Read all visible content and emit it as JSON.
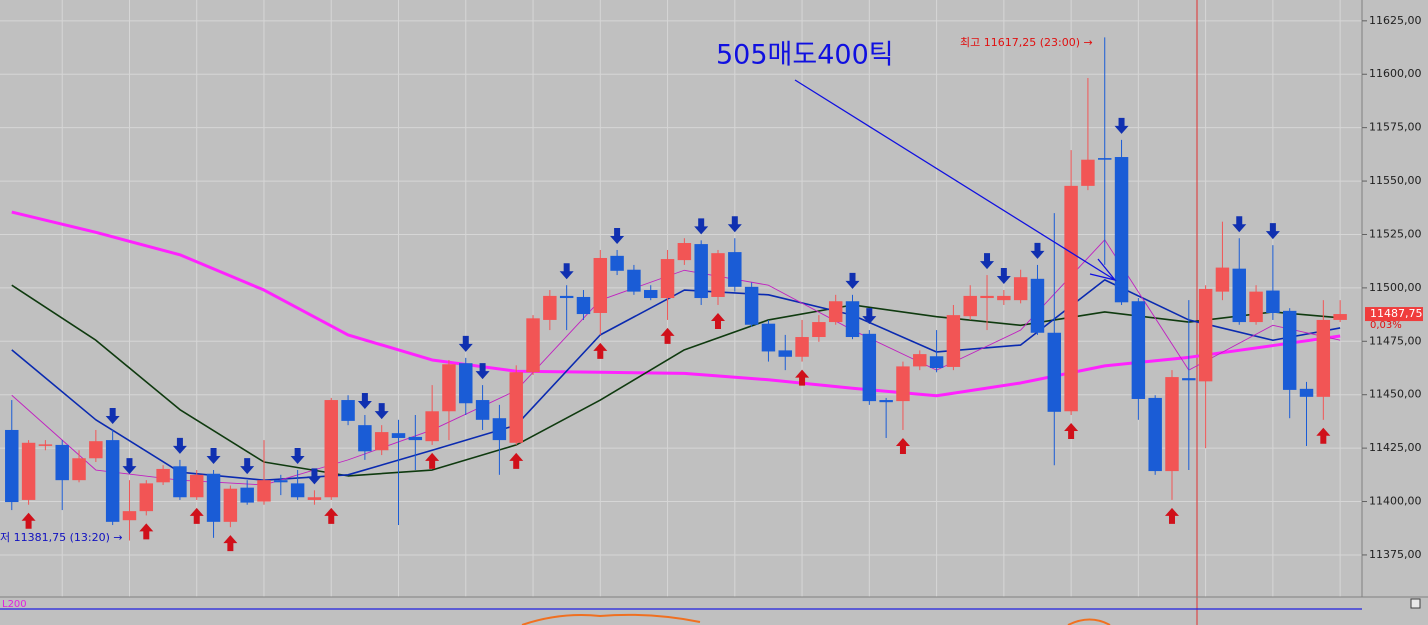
{
  "chart_data": {
    "type": "candlestick",
    "ylim": [
      11356.25,
      11634.75
    ],
    "xlim": [
      -0.7,
      80.3
    ],
    "yticks": [
      {
        "value": 11375,
        "label": "11375,00"
      },
      {
        "value": 11400,
        "label": "11400,00"
      },
      {
        "value": 11425,
        "label": "11425,00"
      },
      {
        "value": 11450,
        "label": "11450,00"
      },
      {
        "value": 11475,
        "label": "11475,00"
      },
      {
        "value": 11500,
        "label": "11500,00"
      },
      {
        "value": 11525,
        "label": "11525,00"
      },
      {
        "value": 11550,
        "label": "11550,00"
      },
      {
        "value": 11575,
        "label": "11575,00"
      },
      {
        "value": 11600,
        "label": "11600,00"
      },
      {
        "value": 11625,
        "label": "11625,00"
      }
    ],
    "grid": true,
    "up_color": "#f25555",
    "down_color": "#1a5cd6",
    "open": [
      11433.5,
      11400.75,
      11426.5,
      11426.5,
      11410,
      11420.25,
      11428.75,
      11391.25,
      11395.5,
      11409,
      11416.5,
      11402,
      11413,
      11390.5,
      11406.5,
      11400,
      11410,
      11408.5,
      11400.75,
      11402,
      11447.5,
      11435.75,
      11424,
      11432,
      11430.25,
      11428.25,
      11442.25,
      11464.75,
      11447.5,
      11439,
      11427.5,
      11460.5,
      11485,
      11496.25,
      11495.75,
      11488.25,
      11515,
      11508.5,
      11499,
      11495.25,
      11513,
      11520.5,
      11495.75,
      11516.75,
      11500.5,
      11483.25,
      11470.75,
      11467.75,
      11477,
      11484,
      11493.75,
      11478.5,
      11447.5,
      11447,
      11463.25,
      11468,
      11463,
      11486.75,
      11495.25,
      11494.25,
      11494.25,
      11504.25,
      11479,
      11442.25,
      11547.75,
      11560.75,
      11561.25,
      11493.75,
      11448.5,
      11414.25,
      11457.75,
      11456.25,
      11498.25,
      11509,
      11484,
      11498.75,
      11489.25,
      11452.75,
      11449,
      11485
    ],
    "high": [
      11447.5,
      11428.75,
      11428.75,
      11428.75,
      11424,
      11433.5,
      11433.5,
      11410,
      11410,
      11417,
      11419.5,
      11414.75,
      11414.75,
      11407.5,
      11410,
      11428.75,
      11412.5,
      11414.75,
      11405.25,
      11448.5,
      11449.75,
      11440.5,
      11435.75,
      11438.25,
      11440.5,
      11454.5,
      11466.25,
      11467.25,
      11454.5,
      11445.25,
      11463.75,
      11487.25,
      11499,
      11501.25,
      11499,
      11517.75,
      11517.75,
      11510.75,
      11501.25,
      11517.75,
      11523.25,
      11522.25,
      11517.75,
      11523.25,
      11502.5,
      11485,
      11478,
      11485,
      11487.25,
      11496.75,
      11496.75,
      11480.25,
      11448.5,
      11465.5,
      11470.75,
      11480.25,
      11492,
      11501.25,
      11506,
      11499,
      11508.5,
      11510.75,
      11535,
      11564.5,
      11598.25,
      11617.25,
      11569.25,
      11495.25,
      11449.75,
      11461.5,
      11494.25,
      11501.25,
      11531,
      11523.25,
      11501.25,
      11520,
      11490.5,
      11456,
      11494.25,
      11494.25
    ],
    "low": [
      11396,
      11398.5,
      11424,
      11396,
      11409,
      11418.5,
      11389,
      11381.75,
      11393.5,
      11407.75,
      11400.75,
      11400.75,
      11383,
      11388,
      11398.5,
      11398.5,
      11403,
      11400.75,
      11398.5,
      11400.75,
      11435.75,
      11419.5,
      11421.75,
      11389,
      11414.75,
      11426.5,
      11428.75,
      11440.5,
      11433.5,
      11412.5,
      11426.5,
      11459.25,
      11480.25,
      11480.25,
      11485,
      11478,
      11506,
      11496.75,
      11494.25,
      11485,
      11510.75,
      11492,
      11492,
      11498.25,
      11481.75,
      11465.5,
      11461.5,
      11465.5,
      11474.75,
      11482.75,
      11476,
      11445.25,
      11429.75,
      11433.5,
      11461.5,
      11460.5,
      11461.5,
      11485,
      11480.25,
      11492,
      11492.75,
      11478,
      11417,
      11440.5,
      11545.75,
      11510.75,
      11492,
      11438.25,
      11412.5,
      11400.75,
      11414.75,
      11425,
      11494.25,
      11482.75,
      11482.75,
      11485,
      11439,
      11426,
      11438.25,
      11484
    ],
    "close": [
      11399.75,
      11427.5,
      11426.75,
      11410,
      11420.25,
      11428.25,
      11390.5,
      11395.5,
      11408.5,
      11415.25,
      11402,
      11412.5,
      11390.5,
      11406,
      11399.5,
      11410,
      11409,
      11402,
      11402,
      11447.5,
      11437.75,
      11423.5,
      11432.5,
      11429.75,
      11428.75,
      11442.25,
      11464.25,
      11446,
      11438.25,
      11428.75,
      11460.5,
      11485.75,
      11496.25,
      11495.25,
      11487.75,
      11514,
      11508,
      11498.25,
      11495.25,
      11513.5,
      11521,
      11495.25,
      11516.25,
      11500.5,
      11482.75,
      11470.25,
      11467.75,
      11477,
      11484,
      11493.75,
      11477,
      11447,
      11446.5,
      11463.25,
      11469,
      11462.5,
      11487.25,
      11496.25,
      11496.25,
      11496.25,
      11505,
      11479,
      11442,
      11547.75,
      11560,
      11560,
      11493.25,
      11448,
      11414.25,
      11458.25,
      11456.75,
      11499.5,
      11509.5,
      11484,
      11498.25,
      11488.25,
      11452.25,
      11449,
      11485,
      11487.75
    ],
    "lines": [
      {
        "color": "#ff22ff",
        "width": 3,
        "x": [
          0,
          5,
          10,
          15,
          20,
          25,
          30,
          35,
          40,
          45,
          50,
          55,
          60,
          65,
          70,
          75,
          79
        ],
        "values": [
          11535.5,
          11526,
          11515.5,
          11499,
          11478,
          11466.25,
          11461,
          11460.5,
          11460,
          11457,
          11453,
          11449.5,
          11455.5,
          11463.5,
          11467.5,
          11473,
          11477.5
        ]
      },
      {
        "color": "#0f3a0f",
        "width": 1.6,
        "x": [
          0,
          5,
          10,
          15,
          20,
          25,
          30,
          35,
          40,
          45,
          50,
          55,
          60,
          65,
          70,
          75,
          79
        ],
        "values": [
          11501.25,
          11475.5,
          11443,
          11418.5,
          11412,
          11414.75,
          11426.5,
          11447.5,
          11471,
          11485,
          11492,
          11486.5,
          11482.5,
          11488.75,
          11484,
          11488.75,
          11486
        ]
      },
      {
        "color": "#0a2ab0",
        "width": 1.6,
        "x": [
          0,
          5,
          10,
          15,
          20,
          25,
          30,
          35,
          40,
          45,
          50,
          55,
          60,
          65,
          70,
          75,
          79
        ],
        "values": [
          11471,
          11438.25,
          11413.75,
          11410,
          11412.5,
          11424,
          11435.75,
          11478,
          11499,
          11496.75,
          11487.25,
          11470,
          11473.25,
          11503.75,
          11485,
          11475.5,
          11481.25
        ]
      },
      {
        "color": "#c020c0",
        "width": 0.9,
        "x": [
          0,
          5,
          10,
          15,
          20,
          25,
          30,
          35,
          40,
          45,
          50,
          55,
          60,
          65,
          70,
          75,
          79
        ],
        "values": [
          11449.75,
          11414.75,
          11410,
          11407.75,
          11419.5,
          11433.5,
          11452,
          11494.25,
          11508.25,
          11501.25,
          11480.25,
          11461.5,
          11480.25,
          11522.5,
          11461.5,
          11482.5,
          11475.5
        ]
      }
    ],
    "sell_signals": [
      6,
      7,
      10,
      12,
      14,
      17,
      18,
      21,
      22,
      27,
      28,
      33,
      36,
      41,
      43,
      50,
      51,
      58,
      59,
      61,
      66,
      73,
      75
    ],
    "buy_signals": [
      1,
      8,
      11,
      13,
      19,
      25,
      30,
      35,
      39,
      42,
      47,
      53,
      63,
      69,
      78
    ],
    "annotations": [
      "505매도400틱",
      "최고 11617,25 (23:00) →",
      "저 11381,75 (13:20) →"
    ],
    "last_price": {
      "value": 11487.75,
      "label": "11487,75"
    },
    "change_label": "0,03%",
    "indicator_label": "L200"
  }
}
